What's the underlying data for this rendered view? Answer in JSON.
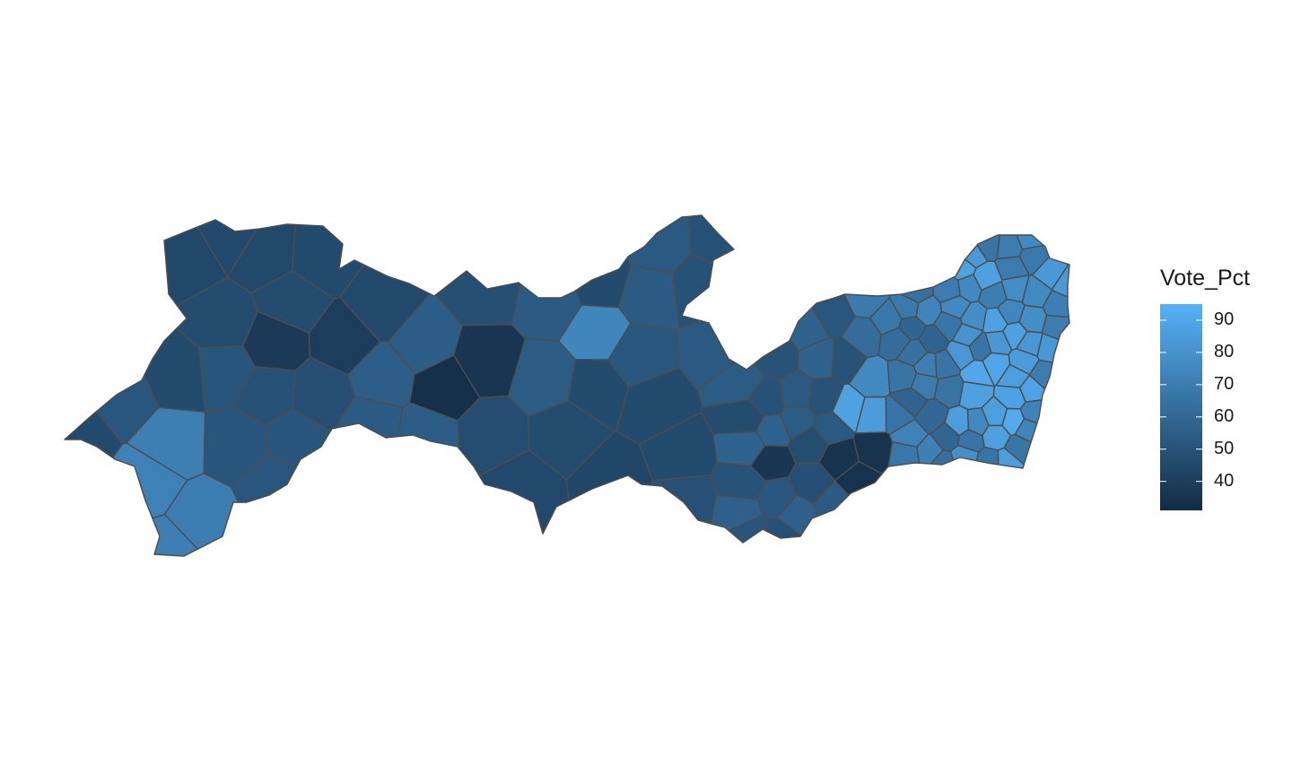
{
  "legend": {
    "title": "Vote_Pct",
    "min": 31,
    "max": 95,
    "ticks": [
      40,
      50,
      60,
      70,
      80,
      90
    ],
    "tick_labels": [
      "40",
      "50",
      "60",
      "70",
      "80",
      "90"
    ],
    "color_low": "#132B43",
    "color_high": "#56B1F7"
  },
  "colors": {
    "border": "#4d4d4d",
    "background": "#ffffff"
  }
}
